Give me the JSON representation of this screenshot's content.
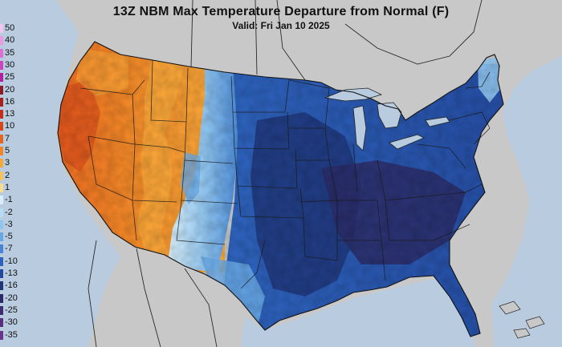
{
  "map": {
    "title": "13Z NBM Max Temperature Departure from Normal (F)",
    "subtitle": "Valid: Fri Jan 10 2025",
    "colors": {
      "land_outside": "#c8c8c8",
      "water": "#b9ccdf",
      "state_lines": "#1a1a1a",
      "coast": "#222222"
    },
    "legend": [
      {
        "label": "50",
        "color": "#f2c6ee"
      },
      {
        "label": "40",
        "color": "#e99be2"
      },
      {
        "label": "35",
        "color": "#de6fd4"
      },
      {
        "label": "30",
        "color": "#cc45bf"
      },
      {
        "label": "25",
        "color": "#b0209f"
      },
      {
        "label": "20",
        "color": "#8a1d2a"
      },
      {
        "label": "16",
        "color": "#a6231d"
      },
      {
        "label": "13",
        "color": "#c0311b"
      },
      {
        "label": "10",
        "color": "#d6461a"
      },
      {
        "label": "7",
        "color": "#e4651f"
      },
      {
        "label": "5",
        "color": "#ef8627"
      },
      {
        "label": "3",
        "color": "#f5a83a"
      },
      {
        "label": "2",
        "color": "#f7c45c"
      },
      {
        "label": "1",
        "color": "#f8dd90"
      },
      {
        "label": "-1",
        "color": "#d8eef9"
      },
      {
        "label": "-2",
        "color": "#b6dcf4"
      },
      {
        "label": "-3",
        "color": "#8fc4ee"
      },
      {
        "label": "-5",
        "color": "#68a8e4"
      },
      {
        "label": "-7",
        "color": "#4585d3"
      },
      {
        "label": "-10",
        "color": "#2d62bb"
      },
      {
        "label": "-13",
        "color": "#23489d"
      },
      {
        "label": "-16",
        "color": "#1f3679"
      },
      {
        "label": "-20",
        "color": "#2a2b66"
      },
      {
        "label": "-25",
        "color": "#3d2c72"
      },
      {
        "label": "-30",
        "color": "#56307f"
      },
      {
        "label": "-35",
        "color": "#6a3589"
      }
    ]
  }
}
